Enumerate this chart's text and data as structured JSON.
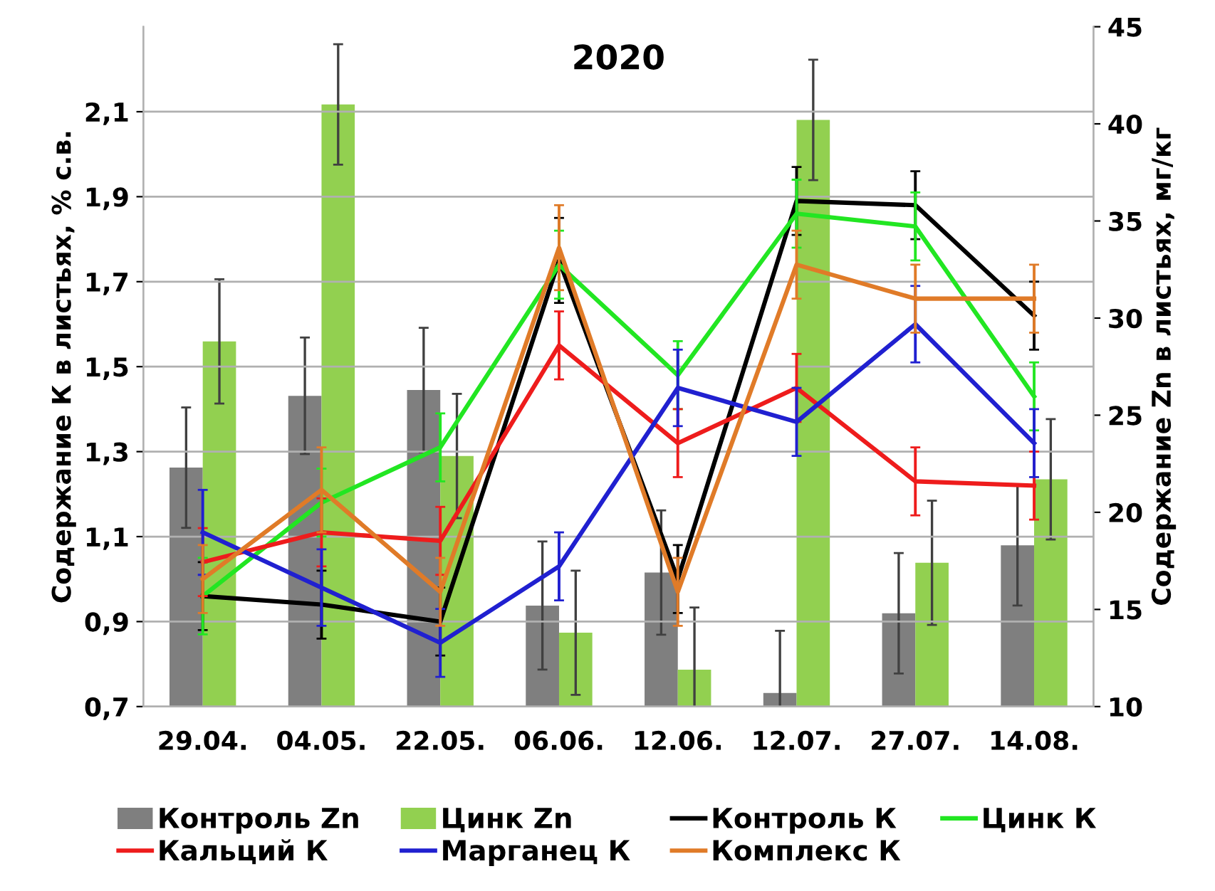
{
  "chart_data": {
    "type": "line",
    "title": "2020",
    "ylabel": "Содержание К в листьях, % с.в.",
    "y2label": "Содержание Zn в листьях, мг/кг",
    "categories": [
      "29.04.",
      "04.05.",
      "22.05.",
      "06.06.",
      "12.06.",
      "12.07.",
      "27.07.",
      "14.08."
    ],
    "ylim": [
      0.7,
      2.3
    ],
    "yticks": [
      {
        "value": 0.7,
        "label": "0,7"
      },
      {
        "value": 0.9,
        "label": "0,9"
      },
      {
        "value": 1.1,
        "label": "1,1"
      },
      {
        "value": 1.3,
        "label": "1,3"
      },
      {
        "value": 1.5,
        "label": "1,5"
      },
      {
        "value": 1.7,
        "label": "1,7"
      },
      {
        "value": 1.9,
        "label": "1,9"
      },
      {
        "value": 2.1,
        "label": "2,1"
      }
    ],
    "y2lim": [
      10,
      45
    ],
    "y2ticks": [
      10,
      15,
      20,
      25,
      30,
      35,
      40,
      45
    ],
    "grid": "y",
    "legend": "bottom",
    "marker": "none",
    "line_style": "solid",
    "series": [
      {
        "name": "Контроль Zn",
        "type": "bar",
        "axis": "y2",
        "color": "#7f7f7f",
        "values": [
          22.3,
          26.0,
          26.3,
          15.2,
          16.9,
          10.7,
          14.8,
          18.3
        ],
        "errors": [
          3.1,
          3.0,
          3.2,
          3.3,
          3.2,
          3.2,
          3.1,
          3.1
        ]
      },
      {
        "name": "Цинк Zn",
        "type": "bar",
        "axis": "y2",
        "color": "#92d050",
        "values": [
          28.8,
          41.0,
          22.9,
          13.8,
          11.9,
          40.2,
          17.4,
          21.7
        ],
        "errors": [
          3.2,
          3.1,
          3.2,
          3.2,
          3.2,
          3.1,
          3.2,
          3.1
        ]
      },
      {
        "name": "Контроль К",
        "color": "#000000",
        "values": [
          0.96,
          0.94,
          0.9,
          1.75,
          1.0,
          1.89,
          1.88,
          1.62
        ],
        "errors": [
          0.08,
          0.08,
          0.08,
          0.1,
          0.08,
          0.08,
          0.08,
          0.08
        ]
      },
      {
        "name": "Цинк К",
        "color": "#22e622",
        "values": [
          0.96,
          1.18,
          1.31,
          1.74,
          1.48,
          1.86,
          1.83,
          1.43
        ],
        "errors": [
          0.09,
          0.08,
          0.08,
          0.08,
          0.08,
          0.08,
          0.08,
          0.08
        ]
      },
      {
        "name": "Кальций К",
        "color": "#ee1c1c",
        "values": [
          1.04,
          1.11,
          1.09,
          1.55,
          1.32,
          1.45,
          1.23,
          1.22
        ],
        "errors": [
          0.08,
          0.08,
          0.08,
          0.08,
          0.08,
          0.08,
          0.08,
          0.08
        ]
      },
      {
        "name": "Марганец К",
        "color": "#2020d0",
        "values": [
          1.11,
          0.98,
          0.85,
          1.03,
          1.45,
          1.37,
          1.6,
          1.32
        ],
        "errors": [
          0.1,
          0.09,
          0.08,
          0.08,
          0.09,
          0.08,
          0.09,
          0.08
        ]
      },
      {
        "name": "Комплекс К",
        "color": "#e07b28",
        "values": [
          1.0,
          1.21,
          0.97,
          1.78,
          0.97,
          1.74,
          1.66,
          1.66
        ],
        "errors": [
          0.08,
          0.1,
          0.08,
          0.1,
          0.08,
          0.08,
          0.08,
          0.08
        ]
      }
    ]
  }
}
